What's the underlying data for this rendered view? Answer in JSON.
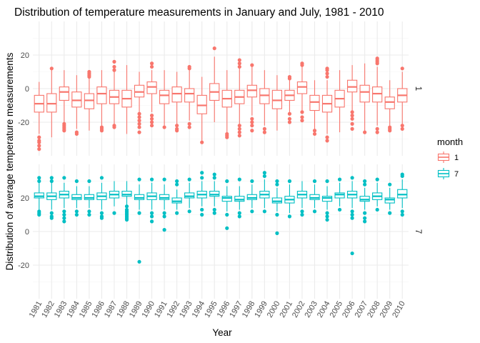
{
  "chart_data": {
    "type": "boxplot",
    "title": "Distribution of temperature measurements in January and July, 1981 - 2010",
    "xlabel": "Year",
    "ylabel": "Distribution of average temperature measurements",
    "categories": [
      "1981",
      "1982",
      "1983",
      "1984",
      "1985",
      "1986",
      "1987",
      "1988",
      "1989",
      "1990",
      "1991",
      "1992",
      "1993",
      "1994",
      "1995",
      "1996",
      "1997",
      "1998",
      "1999",
      "2000",
      "2001",
      "2002",
      "2003",
      "2004",
      "2005",
      "2006",
      "2007",
      "2008",
      "2009",
      "2010"
    ],
    "yticks": [
      -20,
      0,
      20
    ],
    "ylim": [
      -40,
      40
    ],
    "facets": [
      "1",
      "7"
    ],
    "legend": {
      "title": "month",
      "position": "right",
      "items": [
        "1",
        "7"
      ]
    },
    "colors": {
      "1": "#F8766D",
      "7": "#00BFC4"
    },
    "grid": true,
    "series": [
      {
        "name": "1",
        "boxes": [
          {
            "q1": -14,
            "median": -9,
            "q3": -4,
            "lo": -27,
            "hi": 4,
            "out": [
              -29,
              -31,
              -32,
              -34,
              -36
            ]
          },
          {
            "q1": -14,
            "median": -9,
            "q3": -3,
            "lo": -29,
            "hi": 12,
            "out": [
              12
            ]
          },
          {
            "q1": -7,
            "median": -2,
            "q3": 1,
            "lo": -20,
            "hi": 11,
            "out": [
              -21,
              -22,
              -23,
              -24,
              -25
            ]
          },
          {
            "q1": -11,
            "median": -7,
            "q3": -2,
            "lo": -24,
            "hi": 8,
            "out": [
              -26,
              -27
            ]
          },
          {
            "q1": -12,
            "median": -7,
            "q3": -3,
            "lo": -25,
            "hi": 6,
            "out": [
              7,
              8,
              9,
              10
            ]
          },
          {
            "q1": -9,
            "median": -3,
            "q3": 1,
            "lo": -22,
            "hi": 11,
            "out": [
              -23,
              -24,
              -25
            ]
          },
          {
            "q1": -9,
            "median": -5,
            "q3": -1,
            "lo": -21,
            "hi": 12,
            "out": [
              11,
              13,
              16,
              -22,
              -23
            ]
          },
          {
            "q1": -11,
            "median": -6,
            "q3": -1,
            "lo": -27,
            "hi": 14,
            "out": []
          },
          {
            "q1": -5,
            "median": -2,
            "q3": 2,
            "lo": -14,
            "hi": 10,
            "out": [
              -15,
              -17,
              -19,
              -21,
              -23,
              -26
            ]
          },
          {
            "q1": -3,
            "median": 1,
            "q3": 4,
            "lo": -14,
            "hi": 11,
            "out": [
              13,
              15,
              -16,
              -18,
              -20,
              -22
            ]
          },
          {
            "q1": -9,
            "median": -4,
            "q3": -1,
            "lo": -22,
            "hi": 11,
            "out": [
              -23
            ]
          },
          {
            "q1": -8,
            "median": -3,
            "q3": 1,
            "lo": -21,
            "hi": 10,
            "out": [
              -22,
              -24,
              -25
            ]
          },
          {
            "q1": -8,
            "median": -3,
            "q3": 0,
            "lo": -19,
            "hi": 11,
            "out": [
              12,
              13,
              -21,
              -23
            ]
          },
          {
            "q1": -15,
            "median": -10,
            "q3": -4,
            "lo": -31,
            "hi": 7,
            "out": [
              -32
            ]
          },
          {
            "q1": -7,
            "median": -2,
            "q3": 3,
            "lo": -20,
            "hi": 19,
            "out": [
              24
            ]
          },
          {
            "q1": -11,
            "median": -6,
            "q3": -1,
            "lo": -26,
            "hi": 11,
            "out": [
              -27,
              -28,
              -29
            ]
          },
          {
            "q1": -9,
            "median": -5,
            "q3": -1,
            "lo": -21,
            "hi": 12,
            "out": [
              13,
              15,
              17,
              -22,
              -24,
              -26,
              -28
            ]
          },
          {
            "q1": -5,
            "median": -1,
            "q3": 2,
            "lo": -16,
            "hi": 13,
            "out": [
              14,
              -18,
              -20,
              -22,
              -25
            ]
          },
          {
            "q1": -9,
            "median": -4,
            "q3": 0,
            "lo": -22,
            "hi": 11,
            "out": [
              -24,
              -26
            ]
          },
          {
            "q1": -12,
            "median": -7,
            "q3": -1,
            "lo": -25,
            "hi": 8,
            "out": []
          },
          {
            "q1": -7,
            "median": -4,
            "q3": -1,
            "lo": -14,
            "hi": 5,
            "out": [
              6,
              7,
              -15,
              -18,
              -20
            ]
          },
          {
            "q1": -3,
            "median": 1,
            "q3": 4,
            "lo": -13,
            "hi": 13,
            "out": [
              14,
              15,
              -14,
              -17,
              -19
            ]
          },
          {
            "q1": -13,
            "median": -8,
            "q3": -4,
            "lo": -24,
            "hi": 5,
            "out": [
              -25,
              -27
            ]
          },
          {
            "q1": -14,
            "median": -9,
            "q3": -4,
            "lo": -27,
            "hi": 5,
            "out": [
              7,
              9,
              11,
              12,
              -29,
              -31
            ]
          },
          {
            "q1": -11,
            "median": -6,
            "q3": -1,
            "lo": -26,
            "hi": 11,
            "out": []
          },
          {
            "q1": -2,
            "median": 1,
            "q3": 5,
            "lo": -13,
            "hi": 14,
            "out": [
              -14,
              -16,
              -18,
              -21,
              -24
            ]
          },
          {
            "q1": -8,
            "median": -2,
            "q3": 2,
            "lo": -25,
            "hi": 15,
            "out": [
              -26
            ]
          },
          {
            "q1": -8,
            "median": -3,
            "q3": 1,
            "lo": -22,
            "hi": 13,
            "out": [
              15,
              16,
              17,
              18,
              -24,
              -26
            ]
          },
          {
            "q1": -12,
            "median": -8,
            "q3": -5,
            "lo": -22,
            "hi": 5,
            "out": [
              -23,
              -24,
              -25
            ]
          },
          {
            "q1": -8,
            "median": -4,
            "q3": 0,
            "lo": -21,
            "hi": 10,
            "out": [
              12,
              -22,
              -24
            ]
          }
        ]
      },
      {
        "name": "7",
        "boxes": [
          {
            "q1": 20,
            "median": 21,
            "q3": 23,
            "lo": 13,
            "hi": 29,
            "out": [
              12,
              11,
              10,
              30,
              32
            ]
          },
          {
            "q1": 19,
            "median": 21,
            "q3": 23,
            "lo": 13,
            "hi": 29,
            "out": [
              11,
              9,
              8,
              30,
              32
            ]
          },
          {
            "q1": 20,
            "median": 22,
            "q3": 24,
            "lo": 14,
            "hi": 29,
            "out": [
              12,
              10,
              8,
              6,
              32
            ]
          },
          {
            "q1": 19,
            "median": 20,
            "q3": 22,
            "lo": 14,
            "hi": 27,
            "out": [
              12,
              10,
              30
            ]
          },
          {
            "q1": 19,
            "median": 20,
            "q3": 22,
            "lo": 14,
            "hi": 27,
            "out": [
              12,
              10,
              30
            ]
          },
          {
            "q1": 19,
            "median": 21,
            "q3": 23,
            "lo": 13,
            "hi": 29,
            "out": [
              11,
              9,
              8,
              32
            ]
          },
          {
            "q1": 20,
            "median": 22,
            "q3": 24,
            "lo": 15,
            "hi": 30,
            "out": [
              11
            ]
          },
          {
            "q1": 21,
            "median": 22,
            "q3": 24,
            "lo": 16,
            "hi": 30,
            "out": [
              15,
              13,
              12,
              11,
              10,
              9,
              8,
              7
            ]
          },
          {
            "q1": 19,
            "median": 20,
            "q3": 22,
            "lo": 13,
            "hi": 28,
            "out": [
              11,
              31,
              -18
            ]
          },
          {
            "q1": 19,
            "median": 21,
            "q3": 23,
            "lo": 13,
            "hi": 29,
            "out": [
              11,
              9,
              6,
              31
            ]
          },
          {
            "q1": 19,
            "median": 20,
            "q3": 22,
            "lo": 13,
            "hi": 28,
            "out": [
              11,
              9,
              1,
              31
            ]
          },
          {
            "q1": 17,
            "median": 18,
            "q3": 20,
            "lo": 13,
            "hi": 25,
            "out": [
              11,
              28,
              30
            ]
          },
          {
            "q1": 20,
            "median": 21,
            "q3": 23,
            "lo": 14,
            "hi": 29,
            "out": [
              12,
              31
            ]
          },
          {
            "q1": 20,
            "median": 22,
            "q3": 24,
            "lo": 15,
            "hi": 30,
            "out": [
              13,
              10,
              32,
              35
            ]
          },
          {
            "q1": 21,
            "median": 22,
            "q3": 24,
            "lo": 15,
            "hi": 30,
            "out": [
              13,
              11,
              32,
              34
            ]
          },
          {
            "q1": 18,
            "median": 20,
            "q3": 21,
            "lo": 12,
            "hi": 27,
            "out": [
              10,
              2,
              30
            ]
          },
          {
            "q1": 18,
            "median": 19,
            "q3": 21,
            "lo": 13,
            "hi": 27,
            "out": [
              11,
              9,
              31
            ]
          },
          {
            "q1": 19,
            "median": 20,
            "q3": 22,
            "lo": 14,
            "hi": 28,
            "out": [
              12,
              30
            ]
          },
          {
            "q1": 20,
            "median": 22,
            "q3": 24,
            "lo": 14,
            "hi": 31,
            "out": [
              12,
              33,
              35
            ]
          },
          {
            "q1": 17,
            "median": 18,
            "q3": 20,
            "lo": 12,
            "hi": 26,
            "out": [
              10,
              28,
              30,
              -1
            ]
          },
          {
            "q1": 17,
            "median": 19,
            "q3": 21,
            "lo": 11,
            "hi": 28,
            "out": [
              9,
              30
            ]
          },
          {
            "q1": 20,
            "median": 22,
            "q3": 24,
            "lo": 14,
            "hi": 30,
            "out": [
              12,
              10
            ]
          },
          {
            "q1": 19,
            "median": 20,
            "q3": 22,
            "lo": 14,
            "hi": 28,
            "out": [
              12,
              30
            ]
          },
          {
            "q1": 18,
            "median": 20,
            "q3": 21,
            "lo": 13,
            "hi": 27,
            "out": [
              11,
              9,
              7,
              30
            ]
          },
          {
            "q1": 20,
            "median": 22,
            "q3": 23,
            "lo": 15,
            "hi": 29,
            "out": [
              13,
              31
            ]
          },
          {
            "q1": 20,
            "median": 22,
            "q3": 24,
            "lo": 14,
            "hi": 30,
            "out": [
              12,
              10,
              8,
              32,
              -13
            ]
          },
          {
            "q1": 18,
            "median": 19,
            "q3": 21,
            "lo": 13,
            "hi": 26,
            "out": [
              11,
              8,
              6,
              28,
              30
            ]
          },
          {
            "q1": 19,
            "median": 21,
            "q3": 23,
            "lo": 15,
            "hi": 29,
            "out": [
              13,
              31
            ]
          },
          {
            "q1": 17,
            "median": 19,
            "q3": 20,
            "lo": 13,
            "hi": 26,
            "out": [
              11,
              28
            ]
          },
          {
            "q1": 20,
            "median": 22,
            "q3": 25,
            "lo": 14,
            "hi": 31,
            "out": [
              12,
              10,
              33,
              34
            ]
          }
        ]
      }
    ]
  }
}
